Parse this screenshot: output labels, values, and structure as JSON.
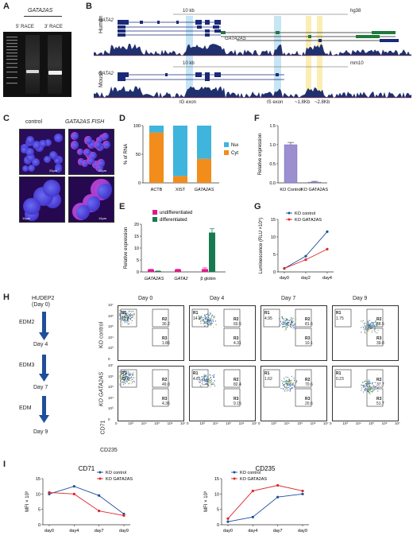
{
  "panels": {
    "A": {
      "letter": "A",
      "gene": "GATA2AS",
      "lanes": [
        "5' RACE",
        "3' RACE"
      ]
    },
    "B": {
      "letter": "B",
      "human": "Human",
      "mouse": "Mouse",
      "scale_human": "10 kb",
      "assembly_human": "hg38",
      "scale_mouse": "10 kb",
      "assembly_mouse": "mm10",
      "gene_gata2": "GATA2",
      "gene_gata2as": "GATA2AS",
      "gene_gata2_mouse": "GATA2",
      "exon_ig": "IG exon",
      "exon_is": "IS exon",
      "dist1": "~1.8Kb",
      "dist2": "~2.8Kb"
    },
    "C": {
      "letter": "C",
      "col1": "control",
      "col2": "GATA2AS FISH",
      "scale_top_left": "20µm",
      "scale_top_right": "20µm",
      "scale_bot_left": "10µm",
      "scale_bot_right": "10µm"
    },
    "D": {
      "letter": "D"
    },
    "E": {
      "letter": "E"
    },
    "F": {
      "letter": "F"
    },
    "G": {
      "letter": "G"
    },
    "H": {
      "letter": "H",
      "flow_start": "HUDEP2",
      "flow_start2": "(Day 0)",
      "media": [
        "EDM2",
        "EDM3",
        "EDM"
      ],
      "days": [
        "Day 4",
        "Day 7",
        "Day 9"
      ],
      "col_titles": [
        "Day 0",
        "Day 4",
        "Day 7",
        "Day 9"
      ],
      "row_titles": [
        "KO control",
        "KO GATA2AS"
      ],
      "y_axis": "CD71",
      "x_axis": "CD235",
      "x_ticks": [
        "0",
        "10³",
        "10⁴",
        "10⁵",
        "10⁶",
        "10⁷"
      ],
      "y_ticks": [
        "10⁷",
        "10⁶",
        "10⁵",
        "10⁴",
        "10³",
        "0"
      ],
      "gate_names": [
        "R1",
        "R2",
        "R3"
      ],
      "gates": [
        [
          [
            "22.8",
            "30.2",
            "1.86"
          ],
          [
            "14.8",
            "60.5",
            "4.31"
          ],
          [
            "4.95",
            "81.6",
            "10.1"
          ],
          [
            "1.75",
            "48.5",
            "39.8"
          ]
        ],
        [
          [
            "23.8",
            "49.0",
            "4.36"
          ],
          [
            "4.81",
            "82.4",
            "9.15"
          ],
          [
            "1.62",
            "70.6",
            "20.6"
          ],
          [
            "0.23",
            "37.7",
            "51.7"
          ]
        ]
      ]
    },
    "I": {
      "letter": "I"
    }
  },
  "chart_data": [
    {
      "id": "D",
      "type": "bar",
      "stacked": true,
      "categories": [
        "ACTB",
        "XIST",
        "GATA2AS"
      ],
      "ylabel": "% of RNA",
      "ylim": [
        0,
        100
      ],
      "yticks": [
        "0",
        "50",
        "100"
      ],
      "series": [
        {
          "name": "Cytoplasma",
          "color": "#f28c1a",
          "values": [
            88,
            12,
            42
          ]
        },
        {
          "name": "Nuclear",
          "color": "#3fb4dd",
          "values": [
            12,
            88,
            58
          ]
        }
      ],
      "legend": "right"
    },
    {
      "id": "E",
      "type": "bar",
      "categories": [
        "GATA2AS",
        "GATA2",
        "β globin"
      ],
      "ylabel": "Relative expression",
      "ylim": [
        0,
        20
      ],
      "yticks": [
        "0",
        "5",
        "10",
        "15",
        "20"
      ],
      "series": [
        {
          "name": "undifferentiated",
          "color": "#e01a8c",
          "values": [
            1.0,
            1.0,
            1.2
          ],
          "err": [
            0.1,
            0.1,
            0.5
          ]
        },
        {
          "name": "differentiated",
          "color": "#177a4e",
          "values": [
            0.35,
            0.0,
            16.5
          ],
          "err": [
            0.05,
            0.0,
            1.6
          ]
        }
      ],
      "legend": "top"
    },
    {
      "id": "F",
      "type": "bar",
      "categories": [
        "KO Control",
        "KO GATA2AS"
      ],
      "ylabel": "Relative expression",
      "ylim": [
        0,
        1.5
      ],
      "yticks": [
        "0.0",
        "0.5",
        "1.0",
        "1.5"
      ],
      "series": [
        {
          "name": "",
          "color": "#9b8fd0",
          "values": [
            1.0,
            0.02
          ],
          "err": [
            0.06,
            0.02
          ]
        }
      ]
    },
    {
      "id": "G",
      "type": "line",
      "x": [
        "day0",
        "day2",
        "day4"
      ],
      "ylabel": "Luminescence (RLU ×10⁵)",
      "ylim": [
        0,
        15
      ],
      "yticks": [
        "0",
        "5",
        "10",
        "15"
      ],
      "series": [
        {
          "name": "KO control",
          "color": "#1f4e9c",
          "values": [
            1.0,
            4.5,
            11.5
          ]
        },
        {
          "name": "KO GATA2AS",
          "color": "#e0242a",
          "values": [
            1.0,
            3.5,
            6.5
          ]
        }
      ],
      "legend": "top-left"
    },
    {
      "id": "I1",
      "type": "line",
      "title": "CD71",
      "x": [
        "day0",
        "day4",
        "day7",
        "day9"
      ],
      "ylabel": "MFI × 10³",
      "ylim": [
        0,
        15
      ],
      "yticks": [
        "0",
        "5",
        "10",
        "15"
      ],
      "series": [
        {
          "name": "KO control",
          "color": "#1f4e9c",
          "values": [
            10.0,
            12.5,
            9.5,
            3.5
          ]
        },
        {
          "name": "KO GATA2AS",
          "color": "#e0242a",
          "values": [
            10.5,
            10.0,
            4.5,
            3.0
          ]
        }
      ],
      "legend": "top-right"
    },
    {
      "id": "I2",
      "type": "line",
      "title": "CD235",
      "x": [
        "day0",
        "day4",
        "day7",
        "day9"
      ],
      "ylabel": "MFI × 10³",
      "ylim": [
        0,
        15
      ],
      "yticks": [
        "0",
        "5",
        "10",
        "15"
      ],
      "series": [
        {
          "name": "KO control",
          "color": "#1f4e9c",
          "values": [
            1.0,
            2.5,
            9.0,
            10.0
          ]
        },
        {
          "name": "KO GATA2AS",
          "color": "#e0242a",
          "values": [
            2.0,
            11.0,
            12.8,
            11.0
          ]
        }
      ],
      "legend": "top-left"
    }
  ]
}
